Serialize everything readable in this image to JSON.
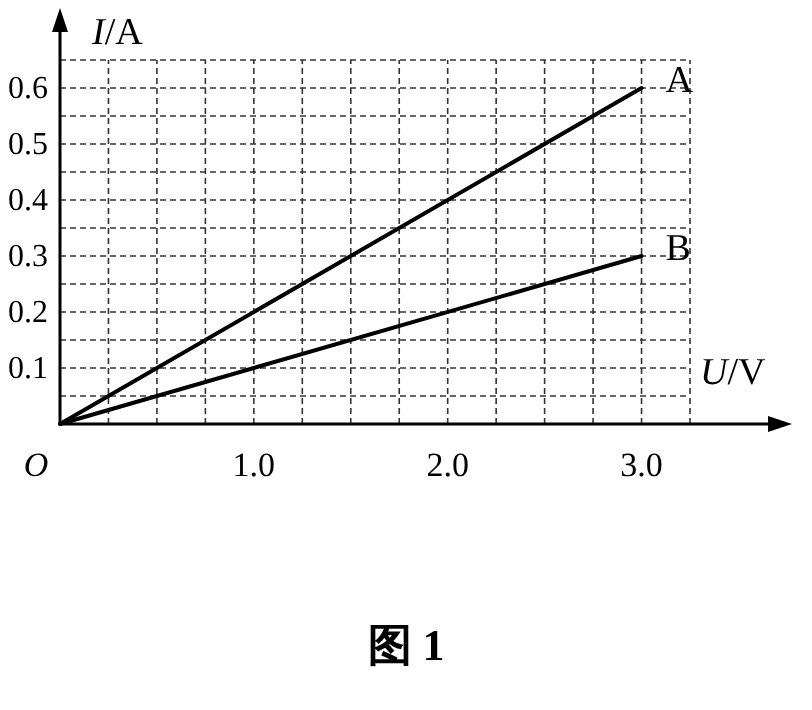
{
  "chart_data": {
    "type": "line",
    "title": "图 1",
    "xlabel": "U/V",
    "ylabel": "I/A",
    "x": [
      0,
      3.0
    ],
    "series": [
      {
        "name": "A",
        "color": "#000000",
        "values": [
          0,
          0.6
        ]
      },
      {
        "name": "B",
        "color": "#000000",
        "values": [
          0,
          0.3
        ]
      }
    ],
    "xlim": [
      0,
      3.25
    ],
    "ylim": [
      0,
      0.65
    ],
    "xticks": [
      {
        "value": 0,
        "label": "O"
      },
      {
        "value": 0.25,
        "label": null
      },
      {
        "value": 0.5,
        "label": null
      },
      {
        "value": 0.75,
        "label": null
      },
      {
        "value": 1,
        "label": "1.0"
      },
      {
        "value": 1.25,
        "label": null
      },
      {
        "value": 1.5,
        "label": null
      },
      {
        "value": 1.75,
        "label": null
      },
      {
        "value": 2,
        "label": "2.0"
      },
      {
        "value": 2.25,
        "label": null
      },
      {
        "value": 2.5,
        "label": null
      },
      {
        "value": 2.75,
        "label": null
      },
      {
        "value": 3,
        "label": "3.0"
      },
      {
        "value": 3.25,
        "label": null
      }
    ],
    "yticks": [
      {
        "value": 0.05,
        "label": null
      },
      0.1,
      {
        "value": 0.15,
        "label": null
      },
      0.2,
      {
        "value": 0.25,
        "label": null
      },
      0.3,
      {
        "value": 0.35,
        "label": null
      },
      0.4,
      {
        "value": 0.45,
        "label": null
      },
      0.5,
      {
        "value": 0.55,
        "label": null
      },
      0.6,
      {
        "value": 0.65,
        "label": null
      }
    ],
    "grid": true,
    "marker": "none",
    "line_style": "solid"
  }
}
